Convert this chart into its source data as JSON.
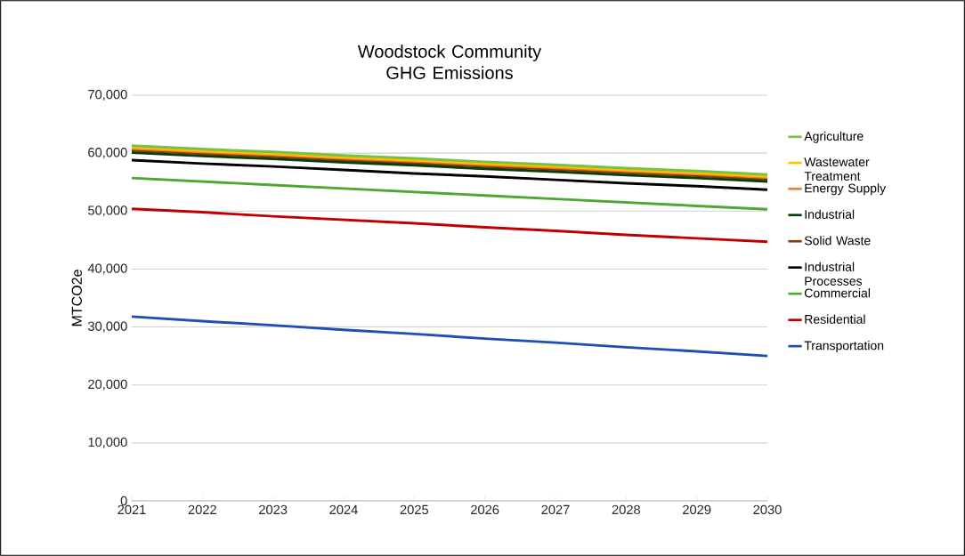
{
  "chart_data": {
    "type": "line",
    "title": "Woodstock Community GHG Emissions",
    "ylabel": "MTCO2e",
    "x": [
      2021,
      2022,
      2023,
      2024,
      2025,
      2026,
      2027,
      2028,
      2029,
      2030
    ],
    "xlim": [
      2021,
      2030
    ],
    "xticks": [
      2021,
      2022,
      2023,
      2024,
      2025,
      2026,
      2027,
      2028,
      2029,
      2030
    ],
    "ylim": [
      0,
      70000
    ],
    "yticks": [
      {
        "value": 0,
        "label": "0"
      },
      {
        "value": 10000,
        "label": "10,000"
      },
      {
        "value": 20000,
        "label": "20,000"
      },
      {
        "value": 30000,
        "label": "30,000"
      },
      {
        "value": 40000,
        "label": "40,000"
      },
      {
        "value": 50000,
        "label": "50,000"
      },
      {
        "value": 60000,
        "label": "60,000"
      },
      {
        "value": 70000,
        "label": "70,000"
      }
    ],
    "grid": "y",
    "legend": "right",
    "marker": "none",
    "line_style": "solid",
    "series": [
      {
        "name": "Agriculture",
        "color": "#7ac143",
        "values": [
          61300,
          60700,
          60200,
          59600,
          59100,
          58500,
          58000,
          57400,
          56900,
          56300
        ]
      },
      {
        "name": "Wastewater Treatment",
        "color": "#ffc000",
        "values": [
          61000,
          60400,
          59900,
          59300,
          58800,
          58200,
          57700,
          57100,
          56600,
          56000
        ]
      },
      {
        "name": "Energy Supply",
        "color": "#ed7d31",
        "values": [
          60800,
          60200,
          59700,
          59100,
          58600,
          58000,
          57500,
          56900,
          56400,
          55800
        ]
      },
      {
        "name": "Industrial",
        "color": "#0b3d0b",
        "values": [
          60100,
          59500,
          59000,
          58400,
          57900,
          57300,
          56800,
          56200,
          55700,
          55100
        ]
      },
      {
        "name": "Solid Waste",
        "color": "#843c0c",
        "values": [
          60500,
          59900,
          59400,
          58800,
          58300,
          57700,
          57200,
          56600,
          56100,
          55500
        ]
      },
      {
        "name": "Industrial Processes",
        "color": "#000000",
        "values": [
          58800,
          58200,
          57700,
          57100,
          56500,
          56000,
          55400,
          54800,
          54300,
          53700
        ]
      },
      {
        "name": "Commercial",
        "color": "#4ea72e",
        "values": [
          55700,
          55100,
          54500,
          53900,
          53300,
          52700,
          52100,
          51500,
          50900,
          50300
        ]
      },
      {
        "name": "Residential",
        "color": "#c00000",
        "values": [
          50400,
          49800,
          49100,
          48500,
          47900,
          47200,
          46600,
          45900,
          45300,
          44700
        ]
      },
      {
        "name": "Transportation",
        "color": "#1f4eb4",
        "values": [
          31800,
          31000,
          30300,
          29500,
          28800,
          28000,
          27300,
          26500,
          25800,
          25000
        ]
      }
    ]
  }
}
